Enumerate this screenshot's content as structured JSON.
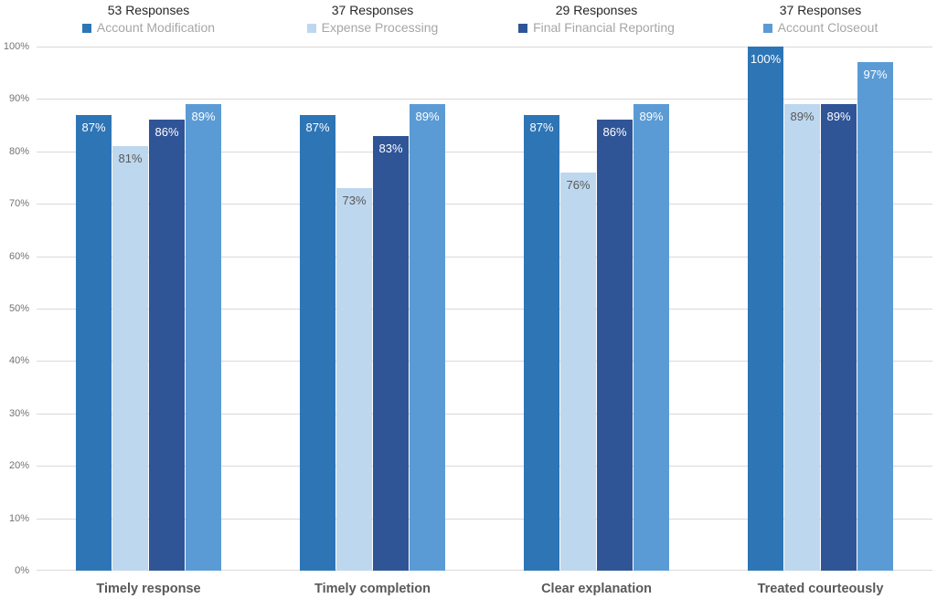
{
  "chart_data": {
    "type": "bar",
    "title": "",
    "xlabel": "",
    "ylabel": "",
    "categories": [
      "Timely response",
      "Timely completion",
      "Clear explanation",
      "Treated courteously"
    ],
    "series": [
      {
        "name": "Account Modification",
        "responses_label": "53 Responses",
        "color": "#2E75B6",
        "data_label_color": "#FFFFFF",
        "values": [
          87,
          87,
          87,
          100
        ]
      },
      {
        "name": "Expense Processing",
        "responses_label": "37 Responses",
        "color": "#BDD7EE",
        "data_label_color": "#595959",
        "values": [
          81,
          73,
          76,
          89
        ]
      },
      {
        "name": "Final Financial Reporting",
        "responses_label": "29 Responses",
        "color": "#2F5597",
        "data_label_color": "#FFFFFF",
        "values": [
          86,
          83,
          86,
          89
        ]
      },
      {
        "name": "Account Closeout",
        "responses_label": "37 Responses",
        "color": "#5B9BD5",
        "data_label_color": "#FFFFFF",
        "values": [
          89,
          89,
          89,
          97
        ]
      }
    ],
    "value_suffix": "%",
    "y_axis": {
      "min": 0,
      "max": 100,
      "step": 10,
      "tick_labels": [
        "0%",
        "10%",
        "20%",
        "30%",
        "40%",
        "50%",
        "60%",
        "70%",
        "80%",
        "90%",
        "100%"
      ]
    },
    "grid": true,
    "legend_position": "top",
    "colors": {
      "background": "#FFFFFF",
      "gridline": "#D9D9D9",
      "y_tick_text": "#737373",
      "category_text": "#595959",
      "responses_text": "#262626",
      "legend_name_text": "#A6A6A6"
    }
  }
}
